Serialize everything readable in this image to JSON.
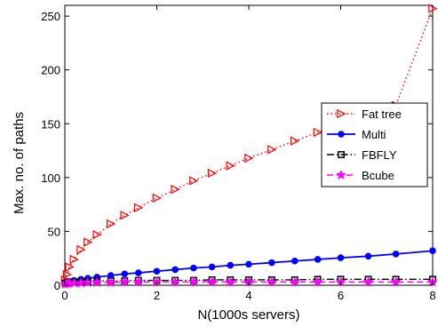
{
  "chart_data": {
    "type": "line",
    "title": "",
    "xlabel": "N(1000s servers)",
    "ylabel": "Max. no. of paths",
    "xlim": [
      0,
      8
    ],
    "ylim": [
      0,
      260
    ],
    "xticks": [
      0,
      2,
      4,
      6,
      8
    ],
    "yticks": [
      0,
      50,
      100,
      150,
      200,
      250
    ],
    "xtick_labels": [
      "0",
      "2",
      "4",
      "6",
      "8"
    ],
    "ytick_labels": [
      "0",
      "50",
      "100",
      "150",
      "200",
      "250"
    ],
    "grid": false,
    "legend_position": "right",
    "series": [
      {
        "name": "Fat tree",
        "color": "#ff0000",
        "line_style": "dotted",
        "marker": "triangle-right",
        "x": [
          0.01,
          0.05,
          0.1,
          0.2,
          0.35,
          0.5,
          0.7,
          1.0,
          1.3,
          1.6,
          2.0,
          2.4,
          2.8,
          3.2,
          3.6,
          4.0,
          4.5,
          5.0,
          5.5,
          6.0,
          6.6,
          7.2,
          8.0
        ],
        "y": [
          5,
          10,
          17,
          24,
          33,
          40,
          47,
          57,
          65,
          72,
          81,
          89,
          97,
          104,
          111,
          118,
          126,
          134,
          142,
          150,
          158,
          167,
          257
        ]
      },
      {
        "name": "Multi",
        "color": "#0000ff",
        "line_style": "solid",
        "marker": "circle",
        "x": [
          0.01,
          0.05,
          0.1,
          0.2,
          0.35,
          0.5,
          0.7,
          1.0,
          1.3,
          1.6,
          2.0,
          2.4,
          2.8,
          3.2,
          3.6,
          4.0,
          4.5,
          5.0,
          5.5,
          6.0,
          6.6,
          7.2,
          8.0
        ],
        "y": [
          1,
          2.5,
          3.5,
          4.5,
          5.5,
          6.5,
          7.5,
          9,
          10.5,
          11.5,
          13,
          14.5,
          16,
          17,
          18.5,
          19.5,
          21,
          22.5,
          24,
          25.5,
          27,
          29,
          32
        ]
      },
      {
        "name": "FBFLY",
        "color": "#000000",
        "line_style": "dash-dot",
        "marker": "square",
        "x": [
          0.01,
          0.05,
          0.1,
          0.2,
          0.35,
          0.5,
          0.7,
          1.0,
          1.3,
          1.6,
          2.0,
          2.4,
          2.8,
          3.2,
          3.6,
          4.0,
          4.5,
          5.0,
          5.5,
          6.0,
          6.6,
          7.2,
          8.0
        ],
        "y": [
          2,
          2.5,
          3,
          3,
          3.5,
          3.5,
          4,
          4,
          4,
          4.5,
          4.5,
          4.5,
          4.5,
          5,
          5,
          5,
          5,
          5,
          5.5,
          5.5,
          5.5,
          5.5,
          5.5
        ]
      },
      {
        "name": "Bcube",
        "color": "#ff00ff",
        "line_style": "dashed",
        "marker": "star",
        "x": [
          0.01,
          0.05,
          0.1,
          0.2,
          0.35,
          0.5,
          0.7,
          1.0,
          1.3,
          1.6,
          2.0,
          2.4,
          2.8,
          3.2,
          3.6,
          4.0,
          4.5,
          5.0,
          5.5,
          6.0,
          6.6,
          7.2,
          8.0
        ],
        "y": [
          1,
          1.5,
          2,
          2,
          2,
          2.5,
          2.5,
          2.5,
          3,
          3,
          3,
          3,
          3,
          3,
          3,
          3,
          3,
          3,
          3,
          3,
          3,
          3,
          3
        ]
      }
    ]
  }
}
